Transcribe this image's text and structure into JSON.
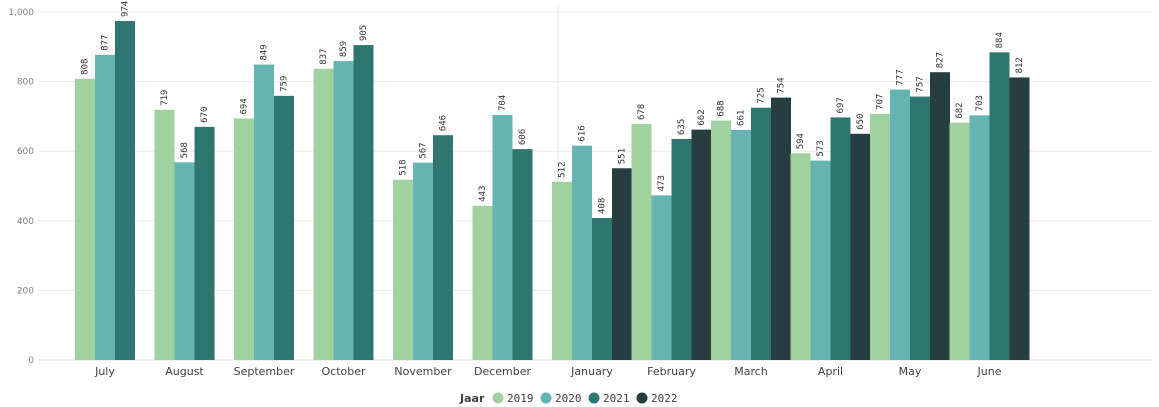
{
  "chart_data": {
    "type": "bar",
    "categories": [
      "July",
      "August",
      "September",
      "October",
      "November",
      "December",
      "January",
      "February",
      "March",
      "April",
      "May",
      "June"
    ],
    "series": [
      {
        "name": "2019",
        "color": "#9fd29f",
        "values": [
          808,
          719,
          694,
          837,
          518,
          443,
          512,
          678,
          688,
          594,
          707,
          682
        ]
      },
      {
        "name": "2020",
        "color": "#66b4b2",
        "values": [
          877,
          568,
          849,
          859,
          567,
          704,
          616,
          473,
          661,
          573,
          777,
          703
        ]
      },
      {
        "name": "2021",
        "color": "#2f7672",
        "values": [
          974,
          670,
          759,
          905,
          646,
          606,
          408,
          635,
          725,
          697,
          757,
          884
        ]
      },
      {
        "name": "2022",
        "color": "#263e3f",
        "values": [
          null,
          null,
          null,
          null,
          null,
          null,
          551,
          662,
          754,
          650,
          827,
          812
        ]
      }
    ],
    "yticks": [
      "0",
      "200",
      "400",
      "600",
      "800",
      "1,000"
    ],
    "ylim": [
      0,
      1000
    ],
    "legend": {
      "title": "Jaar",
      "position": "bottom-center"
    },
    "grid": true,
    "separator_after_category": "December",
    "title": "",
    "xlabel": "",
    "ylabel": ""
  }
}
